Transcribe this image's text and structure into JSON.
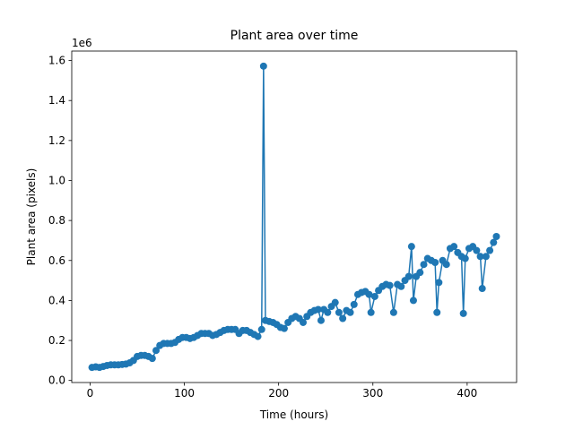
{
  "chart_data": {
    "type": "line",
    "title": "Plant area over time",
    "x_label": "Time (hours)",
    "y_label": "Plant area (pixels)",
    "y_offset_label": "1e6",
    "color": "#1f77b4",
    "markers": true,
    "x": [
      2,
      6,
      10,
      14,
      18,
      22,
      26,
      30,
      34,
      38,
      42,
      46,
      50,
      54,
      58,
      62,
      66,
      70,
      74,
      78,
      82,
      86,
      90,
      94,
      98,
      102,
      106,
      110,
      114,
      118,
      122,
      126,
      130,
      134,
      138,
      142,
      146,
      150,
      154,
      158,
      162,
      166,
      170,
      174,
      178,
      182,
      184,
      186,
      190,
      194,
      198,
      202,
      206,
      210,
      214,
      218,
      222,
      226,
      230,
      234,
      238,
      242,
      245,
      248,
      252,
      256,
      260,
      264,
      268,
      272,
      276,
      280,
      284,
      288,
      292,
      296,
      298,
      302,
      306,
      310,
      314,
      318,
      322,
      326,
      330,
      334,
      338,
      341,
      343,
      346,
      350,
      354,
      358,
      362,
      366,
      368,
      370,
      374,
      378,
      382,
      386,
      390,
      394,
      396,
      398,
      402,
      406,
      410,
      414,
      416,
      420,
      424,
      428,
      431
    ],
    "values": [
      65000,
      68000,
      65000,
      70000,
      75000,
      78000,
      78000,
      78000,
      80000,
      82000,
      88000,
      100000,
      120000,
      125000,
      125000,
      120000,
      110000,
      150000,
      175000,
      185000,
      185000,
      185000,
      190000,
      205000,
      215000,
      215000,
      210000,
      215000,
      225000,
      235000,
      235000,
      235000,
      225000,
      230000,
      240000,
      250000,
      255000,
      255000,
      255000,
      235000,
      250000,
      250000,
      240000,
      230000,
      220000,
      255000,
      1572000,
      300000,
      295000,
      290000,
      280000,
      265000,
      260000,
      290000,
      310000,
      320000,
      310000,
      290000,
      320000,
      340000,
      350000,
      355000,
      300000,
      355000,
      340000,
      370000,
      390000,
      340000,
      310000,
      350000,
      340000,
      380000,
      430000,
      440000,
      445000,
      430000,
      340000,
      420000,
      450000,
      470000,
      480000,
      475000,
      340000,
      480000,
      470000,
      500000,
      520000,
      670000,
      400000,
      520000,
      540000,
      580000,
      610000,
      600000,
      590000,
      340000,
      490000,
      600000,
      580000,
      660000,
      670000,
      640000,
      620000,
      335000,
      610000,
      660000,
      670000,
      650000,
      620000,
      460000,
      620000,
      650000,
      690000,
      720000
    ],
    "xlim": [
      -19.45,
      452.45
    ],
    "xticks": [
      0,
      100,
      200,
      300,
      400
    ],
    "ylim": [
      -10350,
      1647350
    ],
    "yticks": [
      {
        "value": 0,
        "label": "0.0"
      },
      {
        "value": 200000,
        "label": "0.2"
      },
      {
        "value": 400000,
        "label": "0.4"
      },
      {
        "value": 600000,
        "label": "0.6"
      },
      {
        "value": 800000,
        "label": "0.8"
      },
      {
        "value": 1000000,
        "label": "1.0"
      },
      {
        "value": 1200000,
        "label": "1.2"
      },
      {
        "value": 1400000,
        "label": "1.4"
      },
      {
        "value": 1600000,
        "label": "1.6"
      }
    ]
  }
}
